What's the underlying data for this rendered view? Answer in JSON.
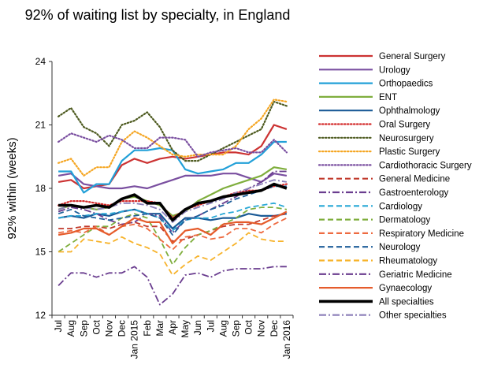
{
  "chart_data": {
    "type": "line",
    "title": "92% of waiting list by specialty, in England",
    "ylabel": "92% within (weeks)",
    "xlabel": "",
    "ylim": [
      12,
      24
    ],
    "yticks": [
      12,
      15,
      18,
      21,
      24
    ],
    "grid": "none",
    "legend_position": "right",
    "categories": [
      "Jul",
      "Aug",
      "Sep",
      "Oct",
      "Nov",
      "Dec",
      "Jan 2015",
      "Feb",
      "Mar",
      "Apr",
      "May",
      "Jun",
      "Jul",
      "Aug",
      "Sep",
      "Oct",
      "Nov",
      "Dec",
      "Jan 2016"
    ],
    "series": [
      {
        "name": "General Surgery",
        "color": "#cc3333",
        "dash": "solid",
        "width": 2.2,
        "values": [
          18.3,
          18.4,
          18.0,
          18.1,
          18.2,
          19.1,
          19.4,
          19.2,
          19.4,
          19.5,
          19.4,
          19.5,
          19.6,
          19.7,
          19.7,
          19.6,
          20.0,
          21.0,
          20.8
        ]
      },
      {
        "name": "Urology",
        "color": "#7a4fa0",
        "dash": "solid",
        "width": 2.2,
        "values": [
          18.6,
          18.7,
          18.2,
          18.1,
          18.0,
          18.0,
          18.1,
          18.0,
          18.2,
          18.4,
          18.6,
          18.6,
          18.6,
          18.7,
          18.7,
          18.5,
          18.3,
          18.7,
          18.6
        ]
      },
      {
        "name": "Orthopaedics",
        "color": "#22a0d8",
        "dash": "solid",
        "width": 2.2,
        "values": [
          18.8,
          18.8,
          17.8,
          18.2,
          18.2,
          19.3,
          19.8,
          19.8,
          19.9,
          19.8,
          18.9,
          18.7,
          18.8,
          18.9,
          19.2,
          19.2,
          19.6,
          20.2,
          20.2
        ]
      },
      {
        "name": "ENT",
        "color": "#7fae3d",
        "dash": "solid",
        "width": 2.2,
        "values": [
          17.0,
          17.2,
          17.1,
          17.0,
          17.1,
          17.5,
          17.6,
          17.4,
          17.2,
          16.7,
          16.9,
          17.4,
          17.7,
          18.0,
          18.2,
          18.4,
          18.6,
          19.0,
          18.9
        ]
      },
      {
        "name": "Ophthalmology",
        "color": "#1a5a96",
        "dash": "solid",
        "width": 2.2,
        "values": [
          16.6,
          16.7,
          16.6,
          16.8,
          16.7,
          16.9,
          17.0,
          16.8,
          16.8,
          16.1,
          16.6,
          16.6,
          16.5,
          16.6,
          16.6,
          16.8,
          16.7,
          16.7,
          16.8
        ]
      },
      {
        "name": "Oral Surgery",
        "color": "#d42b2b",
        "dash": "dot",
        "width": 2.2,
        "values": [
          17.2,
          17.4,
          17.4,
          17.3,
          17.2,
          17.4,
          17.4,
          17.4,
          17.3,
          16.6,
          17.0,
          17.2,
          17.4,
          17.6,
          17.8,
          17.9,
          17.9,
          18.1,
          18.2
        ]
      },
      {
        "name": "Neurosurgery",
        "color": "#4d5a1f",
        "dash": "dot",
        "width": 2.2,
        "values": [
          21.4,
          21.8,
          20.9,
          20.6,
          20.0,
          21.0,
          21.2,
          21.6,
          20.9,
          19.8,
          19.3,
          19.3,
          19.6,
          19.9,
          20.2,
          20.5,
          20.8,
          22.1,
          21.9
        ]
      },
      {
        "name": "Plastic Surgery",
        "color": "#f5a623",
        "dash": "dot",
        "width": 2.2,
        "values": [
          19.2,
          19.4,
          18.6,
          19.0,
          19.0,
          20.2,
          20.7,
          20.4,
          20.0,
          19.6,
          19.5,
          19.6,
          19.6,
          19.6,
          20.0,
          20.8,
          21.3,
          22.2,
          22.1
        ]
      },
      {
        "name": "Cardiothoracic Surgery",
        "color": "#7a4fa0",
        "dash": "dot",
        "width": 2.2,
        "values": [
          20.2,
          20.6,
          20.4,
          20.2,
          20.5,
          20.3,
          19.9,
          19.9,
          20.4,
          20.4,
          20.3,
          19.5,
          19.7,
          19.8,
          19.9,
          19.7,
          19.7,
          20.3,
          19.7
        ]
      },
      {
        "name": "General Medicine",
        "color": "#c0392b",
        "dash": "dash",
        "width": 1.8,
        "values": [
          16.1,
          16.1,
          16.2,
          16.2,
          16.1,
          16.3,
          16.4,
          16.2,
          16.2,
          15.5,
          15.6,
          15.8,
          16.0,
          16.2,
          16.3,
          16.3,
          16.5,
          16.7,
          16.8
        ]
      },
      {
        "name": "Gastroenterology",
        "color": "#6a3d8f",
        "dash": "dashdot",
        "width": 1.8,
        "values": [
          16.9,
          17.1,
          17.0,
          16.8,
          16.5,
          16.3,
          16.4,
          16.8,
          16.7,
          15.9,
          16.5,
          16.7,
          17.0,
          17.3,
          17.6,
          18.0,
          18.3,
          18.8,
          18.8
        ]
      },
      {
        "name": "Cardiology",
        "color": "#29a8d6",
        "dash": "dash",
        "width": 1.8,
        "values": [
          16.6,
          16.7,
          16.7,
          16.8,
          16.8,
          16.9,
          17.0,
          16.8,
          16.6,
          16.0,
          16.5,
          16.6,
          16.6,
          16.8,
          16.9,
          17.1,
          17.2,
          17.3,
          17.1
        ]
      },
      {
        "name": "Dermatology",
        "color": "#7fae3d",
        "dash": "dash",
        "width": 1.8,
        "values": [
          15.0,
          15.4,
          15.8,
          16.2,
          16.2,
          16.6,
          16.8,
          16.6,
          15.6,
          14.4,
          15.2,
          15.8,
          16.0,
          16.3,
          16.6,
          17.0,
          17.1,
          17.1,
          17.0
        ]
      },
      {
        "name": "Respiratory Medicine",
        "color": "#ee6a40",
        "dash": "dash",
        "width": 1.8,
        "values": [
          15.9,
          16.0,
          15.9,
          16.2,
          15.8,
          16.2,
          16.3,
          16.1,
          15.6,
          15.1,
          15.7,
          15.8,
          15.6,
          15.7,
          16.1,
          16.1,
          15.9,
          16.3,
          16.6
        ]
      },
      {
        "name": "Neurology",
        "color": "#1f5f99",
        "dash": "dash",
        "width": 1.8,
        "values": [
          16.8,
          17.0,
          16.7,
          16.6,
          16.5,
          16.6,
          16.7,
          16.8,
          16.6,
          15.8,
          16.5,
          16.7,
          17.0,
          17.2,
          17.5,
          17.7,
          17.9,
          18.1,
          18.1
        ]
      },
      {
        "name": "Rheumatology",
        "color": "#f7b32b",
        "dash": "dash",
        "width": 1.8,
        "values": [
          15.0,
          15.0,
          15.6,
          15.5,
          15.4,
          15.7,
          15.4,
          15.2,
          14.9,
          13.9,
          14.4,
          14.8,
          14.6,
          15.0,
          15.4,
          15.9,
          15.6,
          15.5,
          15.5
        ]
      },
      {
        "name": "Geriatric Medicine",
        "color": "#6a3d8f",
        "dash": "dashdot",
        "width": 1.8,
        "values": [
          13.4,
          14.0,
          14.0,
          13.8,
          14.0,
          14.0,
          14.3,
          13.8,
          12.5,
          13.0,
          13.9,
          14.0,
          13.8,
          14.1,
          14.2,
          14.2,
          14.2,
          14.3,
          14.3
        ]
      },
      {
        "name": "Gynaecology",
        "color": "#e55b2b",
        "dash": "solid",
        "width": 2.2,
        "values": [
          15.8,
          15.9,
          16.1,
          16.1,
          15.8,
          16.2,
          16.6,
          16.4,
          16.4,
          15.4,
          16.0,
          16.1,
          15.8,
          16.3,
          16.4,
          16.4,
          16.3,
          16.6,
          16.9
        ]
      },
      {
        "name": "All specialties",
        "color": "#000000",
        "dash": "solid",
        "width": 3.6,
        "values": [
          17.2,
          17.2,
          17.1,
          17.2,
          17.1,
          17.5,
          17.7,
          17.3,
          17.3,
          16.5,
          17.0,
          17.3,
          17.4,
          17.6,
          17.7,
          17.8,
          17.9,
          18.2,
          18.0
        ]
      },
      {
        "name": "Other specialties",
        "color": "#8b7fb8",
        "dash": "dashdot",
        "width": 1.8,
        "values": [
          17.0,
          17.2,
          17.1,
          17.0,
          17.1,
          17.3,
          17.3,
          17.2,
          17.0,
          16.4,
          16.9,
          17.1,
          17.3,
          17.5,
          17.8,
          18.0,
          18.2,
          18.4,
          18.3
        ]
      }
    ]
  }
}
